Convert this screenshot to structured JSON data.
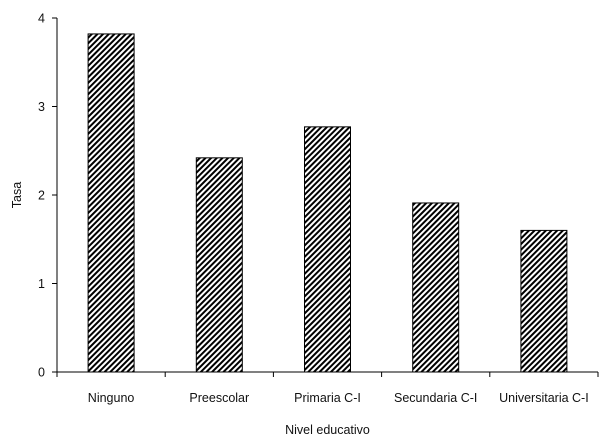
{
  "chart_data": {
    "type": "bar",
    "title": "",
    "xlabel": "Nivel educativo",
    "ylabel": "Tasa",
    "categories": [
      "Ninguno",
      "Preescolar",
      "Primaria C-I",
      "Secundaria C-I",
      "Universitaria C-I"
    ],
    "values": [
      3.82,
      2.42,
      2.77,
      1.91,
      1.6
    ],
    "ylim": [
      0,
      4
    ],
    "yticks": [
      "0",
      "1",
      "2",
      "3",
      "4"
    ],
    "grid": false,
    "legend": "none",
    "bar_fill": "diagonal-hatch",
    "colors": {
      "bar_stroke": "#000000",
      "hatch": "#000000",
      "background": "#ffffff"
    }
  }
}
